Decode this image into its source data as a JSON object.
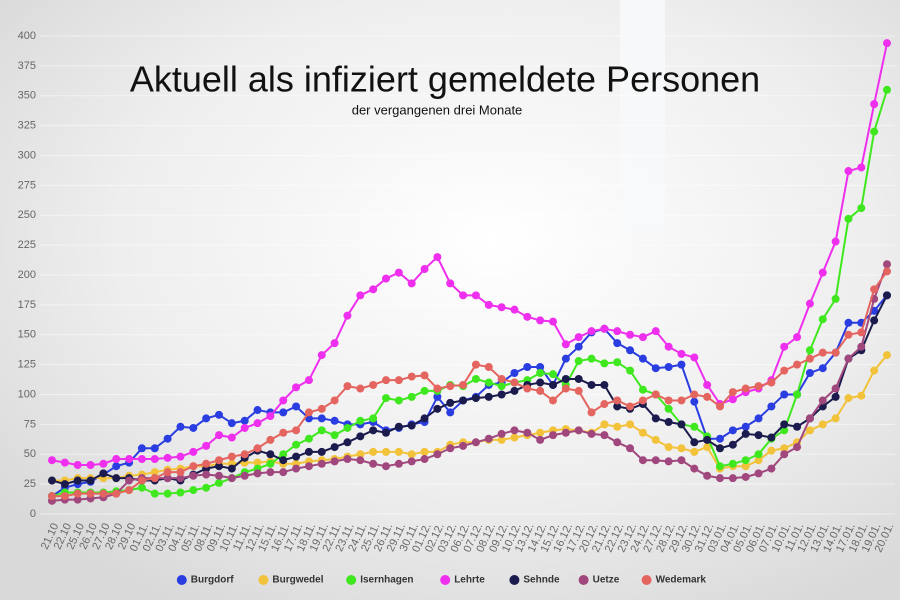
{
  "chart_data": {
    "type": "line",
    "title": "Aktuell als infiziert gemeldete Personen",
    "subtitle": "der vergangenen drei Monate",
    "categories": [
      "21.10",
      "22.10",
      "25.10",
      "26.10",
      "27.10",
      "28.10",
      "29.10",
      "01.11.",
      "02.11.",
      "03.11.",
      "04.11.",
      "05.11.",
      "08.11.",
      "09.11.",
      "10.11.",
      "11.11.",
      "12.11.",
      "15.11.",
      "16.11.",
      "17.11.",
      "18.11.",
      "19.11.",
      "22.11.",
      "23.11.",
      "24.11.",
      "25.11.",
      "26.11.",
      "29.11.",
      "30.11.",
      "01.12.",
      "02.12.",
      "03.12.",
      "06.12.",
      "07.12.",
      "08.12.",
      "09.12.",
      "10.12.",
      "13.12.",
      "14.12.",
      "15.12.",
      "16.12.",
      "17.12.",
      "20.12.",
      "21.12.",
      "22.12.",
      "23.12.",
      "24.12.",
      "27.12.",
      "28.12.",
      "29.12.",
      "30.12.",
      "31.12.",
      "03.01.",
      "04.01.",
      "05.01.",
      "06.01.",
      "07.01.",
      "10.01.",
      "11.01.",
      "12.01.",
      "13.01.",
      "14.01.",
      "17.01.",
      "18.01.",
      "19.01.",
      "20.01."
    ],
    "ylim": [
      0,
      400
    ],
    "yticks": [
      0,
      25,
      50,
      75,
      100,
      125,
      150,
      175,
      200,
      225,
      250,
      275,
      300,
      325,
      350,
      375,
      400
    ],
    "grid": true,
    "series": [
      {
        "name": "Burgdorf",
        "color": "#2a3de0",
        "values": [
          15,
          22,
          25,
          27,
          33,
          40,
          43,
          55,
          55,
          63,
          73,
          72,
          80,
          83,
          76,
          78,
          87,
          85,
          85,
          90,
          80,
          80,
          78,
          75,
          75,
          77,
          70,
          72,
          75,
          77,
          98,
          85,
          95,
          98,
          108,
          110,
          118,
          123,
          123,
          108,
          130,
          140,
          152,
          155,
          143,
          137,
          130,
          122,
          123,
          125,
          94,
          63,
          63,
          70,
          73,
          80,
          90,
          100,
          100,
          118,
          122,
          135,
          160,
          160,
          170,
          183
        ]
      },
      {
        "name": "Burgwedel",
        "color": "#f2c23a",
        "values": [
          28,
          28,
          30,
          30,
          30,
          30,
          32,
          33,
          35,
          37,
          38,
          40,
          40,
          42,
          42,
          43,
          43,
          44,
          42,
          42,
          44,
          45,
          46,
          48,
          50,
          52,
          52,
          52,
          50,
          52,
          52,
          58,
          60,
          60,
          62,
          62,
          64,
          66,
          68,
          70,
          71,
          70,
          68,
          75,
          73,
          75,
          68,
          62,
          56,
          55,
          52,
          56,
          38,
          40,
          40,
          45,
          53,
          55,
          60,
          70,
          75,
          80,
          97,
          99,
          120,
          133
        ]
      },
      {
        "name": "Isernhagen",
        "color": "#3fe81e",
        "values": [
          15,
          18,
          18,
          18,
          18,
          19,
          20,
          22,
          17,
          17,
          18,
          20,
          22,
          26,
          30,
          35,
          38,
          42,
          50,
          58,
          63,
          70,
          66,
          72,
          78,
          80,
          97,
          95,
          98,
          103,
          103,
          108,
          107,
          113,
          110,
          107,
          110,
          112,
          118,
          117,
          108,
          128,
          130,
          126,
          127,
          120,
          104,
          100,
          88,
          75,
          73,
          65,
          40,
          42,
          45,
          50,
          63,
          70,
          100,
          137,
          163,
          180,
          247,
          256,
          320,
          355
        ]
      },
      {
        "name": "Lehrte",
        "color": "#ee2fee",
        "values": [
          45,
          43,
          41,
          41,
          42,
          46,
          46,
          46,
          46,
          47,
          48,
          52,
          57,
          66,
          64,
          72,
          76,
          82,
          95,
          106,
          112,
          133,
          143,
          166,
          183,
          188,
          197,
          202,
          193,
          205,
          215,
          193,
          183,
          183,
          175,
          173,
          171,
          165,
          162,
          161,
          142,
          148,
          153,
          155,
          153,
          150,
          148,
          153,
          140,
          134,
          131,
          108,
          92,
          96,
          102,
          105,
          112,
          140,
          148,
          176,
          202,
          228,
          287,
          290,
          343,
          394
        ]
      },
      {
        "name": "Sehnde",
        "color": "#1b1b4d",
        "values": [
          28,
          25,
          28,
          28,
          34,
          30,
          30,
          28,
          28,
          30,
          28,
          33,
          38,
          40,
          38,
          47,
          53,
          50,
          45,
          48,
          52,
          52,
          56,
          60,
          65,
          70,
          68,
          73,
          74,
          80,
          88,
          93,
          95,
          97,
          98,
          100,
          103,
          108,
          110,
          108,
          113,
          113,
          108,
          108,
          90,
          88,
          92,
          80,
          77,
          75,
          60,
          62,
          55,
          58,
          67,
          66,
          64,
          75,
          73,
          80,
          90,
          98,
          130,
          137,
          162,
          183
        ]
      },
      {
        "name": "Uetze",
        "color": "#a0477e",
        "values": [
          11,
          12,
          12,
          13,
          14,
          17,
          28,
          30,
          30,
          30,
          30,
          32,
          33,
          32,
          30,
          32,
          34,
          35,
          35,
          38,
          40,
          42,
          44,
          46,
          45,
          42,
          40,
          42,
          44,
          46,
          50,
          55,
          57,
          60,
          63,
          67,
          70,
          68,
          62,
          66,
          68,
          70,
          67,
          66,
          60,
          55,
          45,
          45,
          44,
          45,
          38,
          32,
          30,
          30,
          31,
          34,
          38,
          50,
          56,
          80,
          95,
          105,
          130,
          140,
          180,
          209
        ]
      },
      {
        "name": "Wedemark",
        "color": "#e4655f",
        "values": [
          15,
          15,
          17,
          17,
          17,
          17,
          20,
          28,
          30,
          35,
          35,
          40,
          42,
          45,
          48,
          50,
          55,
          62,
          68,
          70,
          85,
          88,
          95,
          107,
          105,
          108,
          112,
          112,
          115,
          116,
          105,
          107,
          108,
          125,
          123,
          113,
          110,
          105,
          103,
          95,
          105,
          103,
          85,
          92,
          95,
          90,
          95,
          100,
          95,
          95,
          100,
          98,
          90,
          102,
          105,
          107,
          110,
          120,
          125,
          130,
          135,
          135,
          150,
          152,
          188,
          203
        ]
      }
    ]
  }
}
